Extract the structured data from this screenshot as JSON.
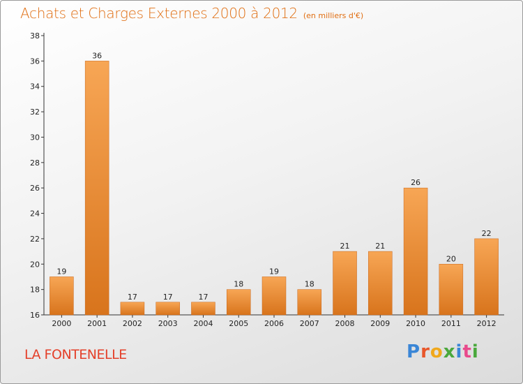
{
  "header": {
    "title": "Achats et Charges Externes 2000 à 2012",
    "unit": "(en milliers d'€)"
  },
  "footer": {
    "commune": "LA FONTENELLE",
    "logo": "Proxiti",
    "logo_colors": [
      "#3a86d6",
      "#e8562a",
      "#f0a81c",
      "#4aa83c",
      "#3a86d6",
      "#e84a8c",
      "#4aa83c"
    ]
  },
  "colors": {
    "bar_light": "#f7a655",
    "bar_dark": "#d8741c",
    "title": "#e06e12",
    "commune": "#e4402a"
  },
  "chart_data": {
    "type": "bar",
    "title": "Achats et Charges Externes 2000 à 2012",
    "subtitle": "(en milliers d'€)",
    "xlabel": "",
    "ylabel": "",
    "ylim": [
      16,
      38
    ],
    "yticks": [
      16,
      18,
      20,
      22,
      24,
      26,
      28,
      30,
      32,
      34,
      36,
      38
    ],
    "categories": [
      "2000",
      "2001",
      "2002",
      "2003",
      "2004",
      "2005",
      "2006",
      "2007",
      "2008",
      "2009",
      "2010",
      "2011",
      "2012"
    ],
    "values": [
      19,
      36,
      17,
      17,
      17,
      18,
      19,
      18,
      21,
      21,
      26,
      20,
      22
    ],
    "grid": false,
    "data_labels": true
  }
}
